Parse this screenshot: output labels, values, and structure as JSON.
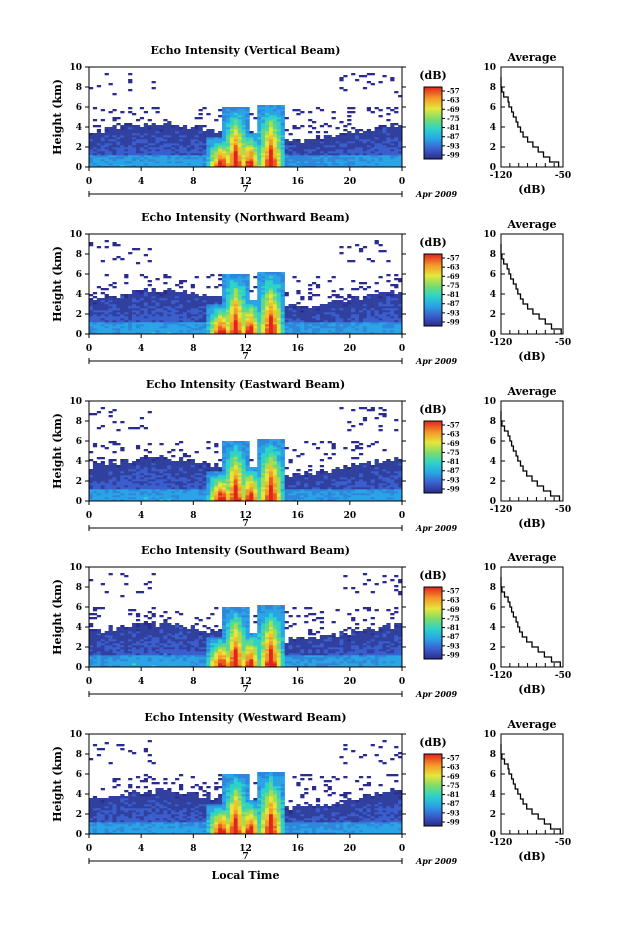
{
  "figure": {
    "xlabel_bottom": "Local Time",
    "ylabel": "Height (km)",
    "date_label": "Apr 2009",
    "day_label": "7",
    "colorbar_unit": "(dB)",
    "avg_title": "Average",
    "avg_xlabel": "(dB)"
  },
  "chart_data": [
    {
      "type": "heatmap",
      "title": "Echo Intensity (Vertical Beam)",
      "xlabel": "Local Time",
      "ylabel": "Height (km)",
      "x_ticks": [
        "0",
        "4",
        "8",
        "12",
        "16",
        "20",
        "0"
      ],
      "y_ticks": [
        "0",
        "2",
        "4",
        "6",
        "8",
        "10"
      ],
      "xlim": [
        0,
        24
      ],
      "ylim": [
        0,
        10
      ],
      "colorbar": {
        "label": "(dB)",
        "ticks": [
          "-57",
          "-63",
          "-69",
          "-75",
          "-81",
          "-87",
          "-93",
          "-99"
        ],
        "range": [
          -99,
          -57
        ]
      },
      "profile": {
        "title": "Average",
        "xlabel": "(dB)",
        "xlim": [
          -120,
          -50
        ],
        "x_ticks": [
          "-120",
          "-50"
        ],
        "y_ticks": [
          "0",
          "2",
          "4",
          "6",
          "8",
          "10"
        ],
        "heights": [
          0,
          0.5,
          1,
          1.5,
          2,
          2.5,
          3,
          3.5,
          4,
          4.5,
          5,
          5.5,
          6,
          6.5,
          7,
          7.5,
          8,
          8.5
        ],
        "values": [
          -55,
          -65,
          -72,
          -78,
          -84,
          -90,
          -95,
          -98,
          -101,
          -103,
          -106,
          -108,
          -111,
          -112,
          -117,
          -119,
          -121,
          -121
        ]
      }
    },
    {
      "type": "heatmap",
      "title": "Echo Intensity (Northward Beam)",
      "xlabel": "Local Time",
      "ylabel": "Height (km)",
      "x_ticks": [
        "0",
        "4",
        "8",
        "12",
        "16",
        "20",
        "0"
      ],
      "y_ticks": [
        "0",
        "2",
        "4",
        "6",
        "8",
        "10"
      ],
      "xlim": [
        0,
        24
      ],
      "ylim": [
        0,
        10
      ],
      "colorbar": {
        "label": "(dB)",
        "ticks": [
          "-57",
          "-63",
          "-69",
          "-75",
          "-81",
          "-87",
          "-93",
          "-99"
        ],
        "range": [
          -99,
          -57
        ]
      },
      "profile": {
        "title": "Average",
        "xlabel": "(dB)",
        "xlim": [
          -120,
          -50
        ],
        "x_ticks": [
          "-120",
          "-50"
        ],
        "y_ticks": [
          "0",
          "2",
          "4",
          "6",
          "8",
          "10"
        ],
        "heights": [
          0,
          0.5,
          1,
          1.5,
          2,
          2.5,
          3,
          3.5,
          4,
          4.5,
          5,
          5.5,
          6,
          6.5,
          7,
          7.5,
          8,
          8.5
        ],
        "values": [
          -52,
          -63,
          -70,
          -77,
          -84,
          -90,
          -95,
          -98,
          -101,
          -103,
          -106,
          -109,
          -111,
          -113,
          -117,
          -119,
          -121,
          -121
        ]
      }
    },
    {
      "type": "heatmap",
      "title": "Echo Intensity (Eastward Beam)",
      "xlabel": "Local Time",
      "ylabel": "Height (km)",
      "x_ticks": [
        "0",
        "4",
        "8",
        "12",
        "16",
        "20",
        "0"
      ],
      "y_ticks": [
        "0",
        "2",
        "4",
        "6",
        "8",
        "10"
      ],
      "xlim": [
        0,
        24
      ],
      "ylim": [
        0,
        10
      ],
      "colorbar": {
        "label": "(dB)",
        "ticks": [
          "-57",
          "-63",
          "-69",
          "-75",
          "-81",
          "-87",
          "-93",
          "-99"
        ],
        "range": [
          -99,
          -57
        ]
      },
      "profile": {
        "title": "Average",
        "xlabel": "(dB)",
        "xlim": [
          -120,
          -50
        ],
        "x_ticks": [
          "-120",
          "-50"
        ],
        "y_ticks": [
          "0",
          "2",
          "4",
          "6",
          "8",
          "10"
        ],
        "heights": [
          0,
          0.5,
          1,
          1.5,
          2,
          2.5,
          3,
          3.5,
          4,
          4.5,
          5,
          5.5,
          6,
          6.5,
          7,
          7.5,
          8,
          8.5
        ],
        "values": [
          -54,
          -64,
          -72,
          -79,
          -85,
          -91,
          -95,
          -98,
          -101,
          -103,
          -106,
          -108,
          -110,
          -112,
          -116,
          -119,
          -120,
          -121
        ]
      }
    },
    {
      "type": "heatmap",
      "title": "Echo Intensity (Southward Beam)",
      "xlabel": "Local Time",
      "ylabel": "Height (km)",
      "x_ticks": [
        "0",
        "4",
        "8",
        "12",
        "16",
        "20",
        "0"
      ],
      "y_ticks": [
        "0",
        "2",
        "4",
        "6",
        "8",
        "10"
      ],
      "xlim": [
        0,
        24
      ],
      "ylim": [
        0,
        10
      ],
      "colorbar": {
        "label": "(dB)",
        "ticks": [
          "-57",
          "-63",
          "-69",
          "-75",
          "-81",
          "-87",
          "-93",
          "-99"
        ],
        "range": [
          -99,
          -57
        ]
      },
      "profile": {
        "title": "Average",
        "xlabel": "(dB)",
        "xlim": [
          -120,
          -50
        ],
        "x_ticks": [
          "-120",
          "-50"
        ],
        "y_ticks": [
          "0",
          "2",
          "4",
          "6",
          "8",
          "10"
        ],
        "heights": [
          0,
          0.5,
          1,
          1.5,
          2,
          2.5,
          3,
          3.5,
          4,
          4.5,
          5,
          5.5,
          6,
          6.5,
          7,
          7.5,
          8,
          8.5
        ],
        "values": [
          -53,
          -63,
          -71,
          -78,
          -85,
          -91,
          -96,
          -99,
          -101,
          -103,
          -106,
          -108,
          -110,
          -112,
          -116,
          -119,
          -120,
          -121
        ]
      }
    },
    {
      "type": "heatmap",
      "title": "Echo Intensity (Westward Beam)",
      "xlabel": "Local Time",
      "ylabel": "Height (km)",
      "x_ticks": [
        "0",
        "4",
        "8",
        "12",
        "16",
        "20",
        "0"
      ],
      "y_ticks": [
        "0",
        "2",
        "4",
        "6",
        "8",
        "10"
      ],
      "xlim": [
        0,
        24
      ],
      "ylim": [
        0,
        10
      ],
      "colorbar": {
        "label": "(dB)",
        "ticks": [
          "-57",
          "-63",
          "-69",
          "-75",
          "-81",
          "-87",
          "-93",
          "-99"
        ],
        "range": [
          -99,
          -57
        ]
      },
      "profile": {
        "title": "Average",
        "xlabel": "(dB)",
        "xlim": [
          -120,
          -50
        ],
        "x_ticks": [
          "-120",
          "-50"
        ],
        "y_ticks": [
          "0",
          "2",
          "4",
          "6",
          "8",
          "10"
        ],
        "heights": [
          0,
          0.5,
          1,
          1.5,
          2,
          2.5,
          3,
          3.5,
          4,
          4.5,
          5,
          5.5,
          6,
          6.5,
          7,
          7.5,
          8,
          8.5
        ],
        "values": [
          -53,
          -64,
          -71,
          -78,
          -85,
          -91,
          -95,
          -98,
          -101,
          -104,
          -106,
          -108,
          -111,
          -112,
          -116,
          -119,
          -120,
          -121
        ]
      }
    }
  ]
}
